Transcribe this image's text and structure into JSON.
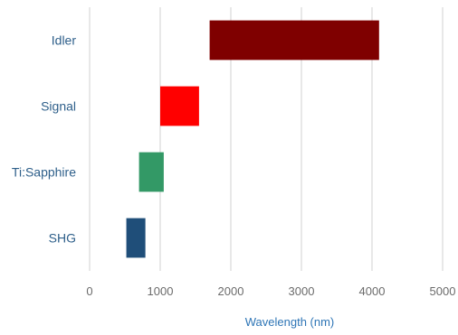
{
  "chart_data": {
    "type": "bar",
    "orientation": "horizontal-floating",
    "title": "",
    "xlabel": "Wavelength (nm)",
    "ylabel": "",
    "xlim": [
      0,
      5000
    ],
    "x_ticks": [
      0,
      1000,
      2000,
      3000,
      4000,
      5000
    ],
    "grid": "vertical",
    "legend": "none",
    "categories": [
      "Idler",
      "Signal",
      "Ti:Sapphire",
      "SHG"
    ],
    "ranges": [
      {
        "category": "Idler",
        "start": 1700,
        "end": 4100,
        "color": "#7f0000"
      },
      {
        "category": "Signal",
        "start": 1000,
        "end": 1550,
        "color": "#ff0000"
      },
      {
        "category": "Ti:Sapphire",
        "start": 700,
        "end": 1050,
        "color": "#339966"
      },
      {
        "category": "SHG",
        "start": 520,
        "end": 790,
        "color": "#1f4e79"
      }
    ]
  }
}
